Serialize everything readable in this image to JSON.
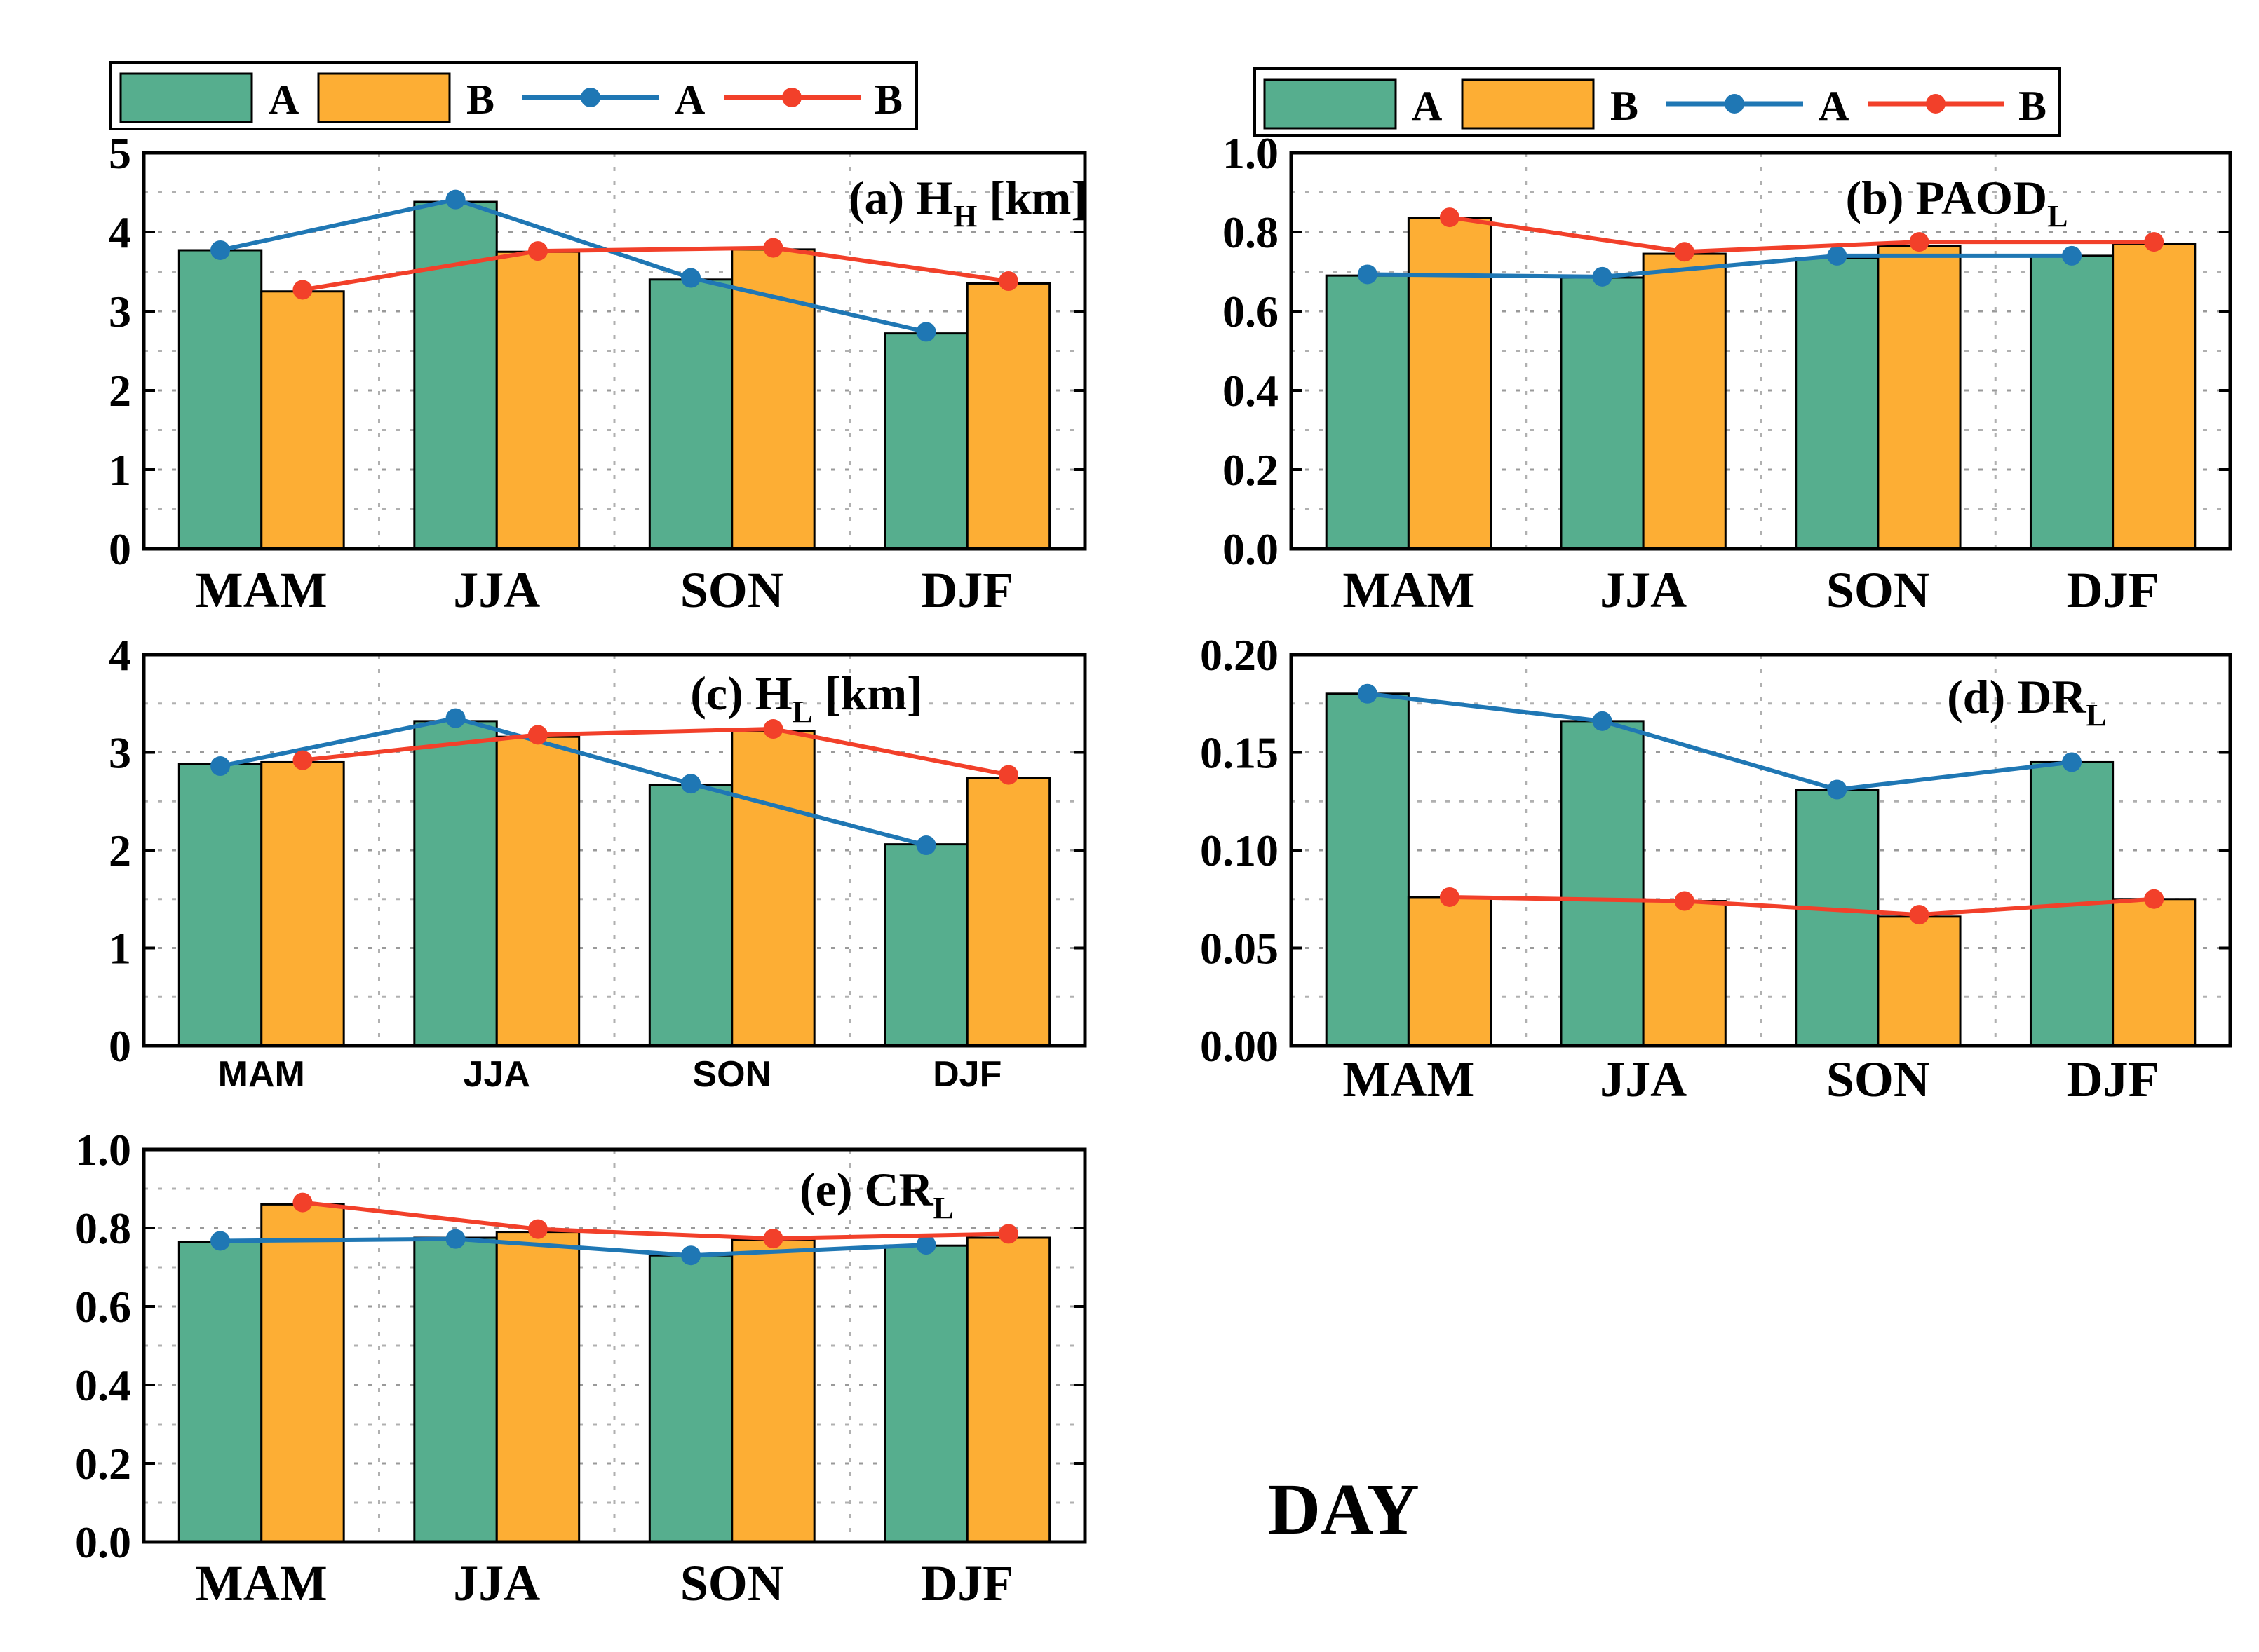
{
  "colors": {
    "barA": "#56ae8e",
    "barB": "#fdae34",
    "lineA": "#1f77b4",
    "lineB": "#f2402a"
  },
  "legend": {
    "barA": "A",
    "barB": "B",
    "lineA": "A",
    "lineB": "B"
  },
  "footer_label": "DAY",
  "chart_data": [
    {
      "id": "a",
      "type": "bar",
      "title_prefix": "(a)",
      "title_main": "H",
      "title_sub": "H",
      "title_suffix": " [km]",
      "categories": [
        "MAM",
        "JJA",
        "SON",
        "DJF"
      ],
      "ylim": [
        0,
        5
      ],
      "yticks": [
        "0",
        "1",
        "2",
        "3",
        "4",
        "5"
      ],
      "grid": true,
      "series": [
        {
          "name": "A",
          "kind": "bar",
          "values": [
            3.77,
            4.38,
            3.4,
            2.72
          ]
        },
        {
          "name": "B",
          "kind": "bar",
          "values": [
            3.25,
            3.75,
            3.78,
            3.35
          ]
        },
        {
          "name": "A",
          "kind": "line",
          "values": [
            3.77,
            4.41,
            3.42,
            2.74
          ]
        },
        {
          "name": "B",
          "kind": "line",
          "values": [
            3.27,
            3.76,
            3.8,
            3.38
          ]
        }
      ]
    },
    {
      "id": "b",
      "type": "bar",
      "title_prefix": "(b)",
      "title_main": "PAOD",
      "title_sub": "L",
      "title_suffix": "",
      "categories": [
        "MAM",
        "JJA",
        "SON",
        "DJF"
      ],
      "ylim": [
        0,
        1.0
      ],
      "yticks": [
        "0.0",
        "0.2",
        "0.4",
        "0.6",
        "0.8",
        "1.0"
      ],
      "grid": true,
      "series": [
        {
          "name": "A",
          "kind": "bar",
          "values": [
            0.69,
            0.685,
            0.735,
            0.74
          ]
        },
        {
          "name": "B",
          "kind": "bar",
          "values": [
            0.835,
            0.745,
            0.765,
            0.77
          ]
        },
        {
          "name": "A",
          "kind": "line",
          "values": [
            0.693,
            0.687,
            0.74,
            0.74
          ]
        },
        {
          "name": "B",
          "kind": "line",
          "values": [
            0.837,
            0.75,
            0.775,
            0.775
          ]
        }
      ]
    },
    {
      "id": "c",
      "type": "bar",
      "title_prefix": "(c)",
      "title_main": "H",
      "title_sub": "L",
      "title_suffix": " [km]",
      "categories": [
        "MAM",
        "JJA",
        "SON",
        "DJF"
      ],
      "ylim": [
        0,
        4
      ],
      "yticks": [
        "0",
        "1",
        "2",
        "3",
        "4"
      ],
      "grid": true,
      "series": [
        {
          "name": "A",
          "kind": "bar",
          "values": [
            2.88,
            3.32,
            2.67,
            2.06
          ]
        },
        {
          "name": "B",
          "kind": "bar",
          "values": [
            2.9,
            3.16,
            3.22,
            2.74
          ]
        },
        {
          "name": "A",
          "kind": "line",
          "values": [
            2.86,
            3.35,
            2.68,
            2.05
          ]
        },
        {
          "name": "B",
          "kind": "line",
          "values": [
            2.92,
            3.18,
            3.24,
            2.77
          ]
        }
      ]
    },
    {
      "id": "d",
      "type": "bar",
      "title_prefix": "(d)",
      "title_main": "DR",
      "title_sub": "L",
      "title_suffix": "",
      "categories": [
        "MAM",
        "JJA",
        "SON",
        "DJF"
      ],
      "ylim": [
        0,
        0.2
      ],
      "yticks": [
        "0.00",
        "0.05",
        "0.10",
        "0.15",
        "0.20"
      ],
      "grid": true,
      "series": [
        {
          "name": "A",
          "kind": "bar",
          "values": [
            0.18,
            0.166,
            0.131,
            0.145
          ]
        },
        {
          "name": "B",
          "kind": "bar",
          "values": [
            0.076,
            0.074,
            0.066,
            0.075
          ]
        },
        {
          "name": "A",
          "kind": "line",
          "values": [
            0.18,
            0.166,
            0.131,
            0.145
          ]
        },
        {
          "name": "B",
          "kind": "line",
          "values": [
            0.076,
            0.074,
            0.067,
            0.075
          ]
        }
      ]
    },
    {
      "id": "e",
      "type": "bar",
      "title_prefix": "(e)",
      "title_main": "CR",
      "title_sub": "L",
      "title_suffix": "",
      "categories": [
        "MAM",
        "JJA",
        "SON",
        "DJF"
      ],
      "ylim": [
        0,
        1.0
      ],
      "yticks": [
        "0.0",
        "0.2",
        "0.4",
        "0.6",
        "0.8",
        "1.0"
      ],
      "grid": true,
      "series": [
        {
          "name": "A",
          "kind": "bar",
          "values": [
            0.765,
            0.775,
            0.73,
            0.755
          ]
        },
        {
          "name": "B",
          "kind": "bar",
          "values": [
            0.86,
            0.79,
            0.77,
            0.775
          ]
        },
        {
          "name": "A",
          "kind": "line",
          "values": [
            0.767,
            0.772,
            0.73,
            0.757
          ]
        },
        {
          "name": "B",
          "kind": "line",
          "values": [
            0.865,
            0.797,
            0.773,
            0.785
          ]
        }
      ]
    }
  ]
}
